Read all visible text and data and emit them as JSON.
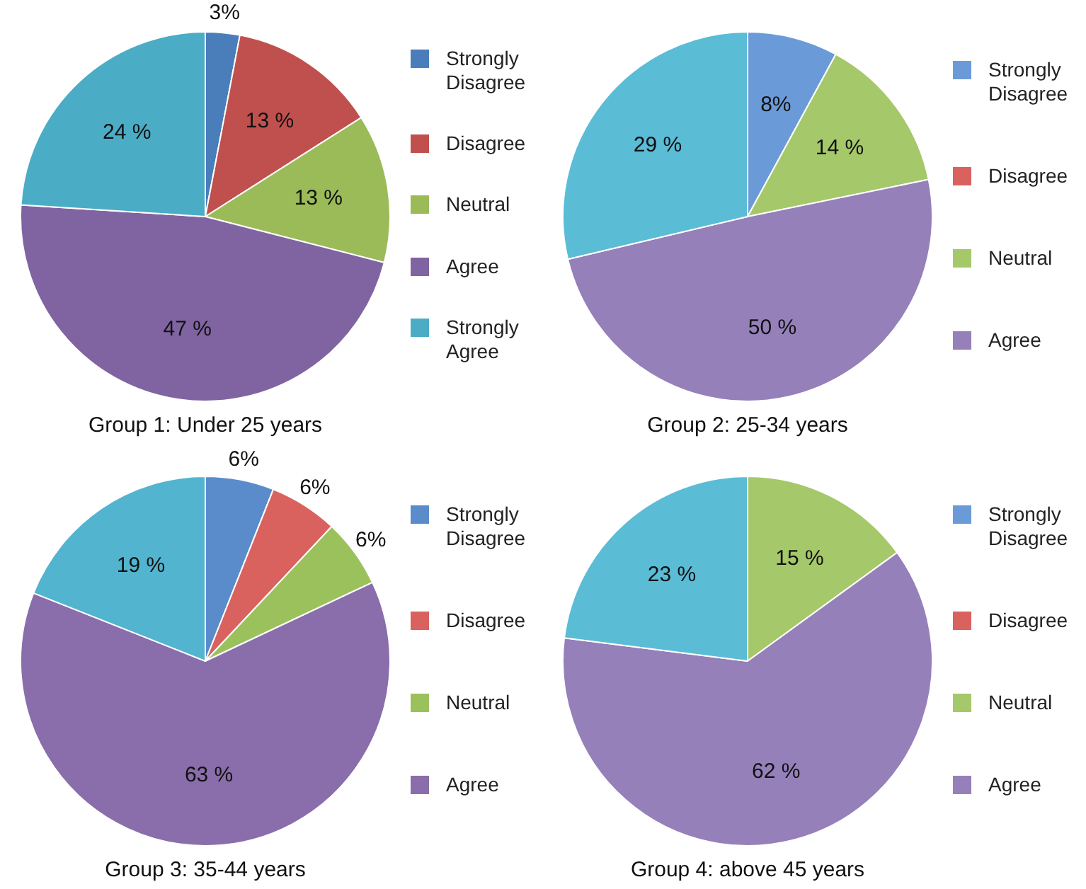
{
  "chart_data": [
    {
      "type": "pie",
      "title": "Group 1: Under 25 years",
      "legend": "right",
      "categories": [
        "Strongly Disagree",
        "Disagree",
        "Neutral",
        "Agree",
        "Strongly Agree"
      ],
      "values": [
        3,
        13,
        13,
        47,
        24
      ],
      "value_labels": [
        "3%",
        "13 %",
        "13 %",
        "47 %",
        "24 %"
      ],
      "colors": [
        "#4a7ebb",
        "#c0504d",
        "#9bbb59",
        "#8064a2",
        "#4bacc6"
      ]
    },
    {
      "type": "pie",
      "title": "Group 2: 25-34 years",
      "legend": "right",
      "categories": [
        "Strongly Disagree",
        "Disagree",
        "Neutral",
        "Agree",
        null
      ],
      "values": [
        8,
        0,
        14,
        50,
        29
      ],
      "value_labels": [
        "8%",
        null,
        "14 %",
        "50 %",
        "29 %"
      ],
      "colors": [
        "#6a9bd8",
        "#d9625f",
        "#a5c86a",
        "#9580ba",
        "#5bbcd6"
      ]
    },
    {
      "type": "pie",
      "title": "Group 3: 35-44 years",
      "legend": "right",
      "categories": [
        "Strongly Disagree",
        "Disagree",
        "Neutral",
        "Agree",
        null
      ],
      "values": [
        6,
        6,
        6,
        63,
        19
      ],
      "value_labels": [
        "6%",
        "6%",
        "6%",
        "63 %",
        "19 %"
      ],
      "colors": [
        "#5a8ccb",
        "#d9625f",
        "#9bc15c",
        "#8a6eab",
        "#52b4cf"
      ]
    },
    {
      "type": "pie",
      "title": "Group 4: above 45 years",
      "legend": "right",
      "categories": [
        "Strongly Disagree",
        "Disagree",
        "Neutral",
        "Agree",
        null
      ],
      "values": [
        0,
        0,
        15,
        62,
        23
      ],
      "value_labels": [
        null,
        null,
        "15 %",
        "62 %",
        "23 %"
      ],
      "colors": [
        "#6a9bd8",
        "#d9625f",
        "#a5c86a",
        "#9580ba",
        "#5bbcd6"
      ]
    }
  ]
}
